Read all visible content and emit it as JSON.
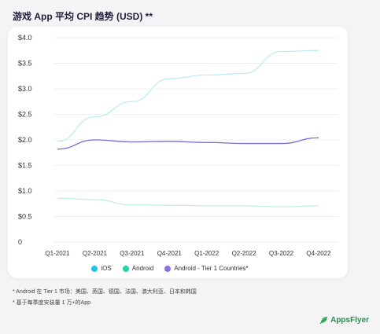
{
  "title": "游戏 App 平均 CPI 趋势 (USD) **",
  "chart_data": {
    "type": "line",
    "categories": [
      "Q1-2021",
      "Q2-2021",
      "Q3-2021",
      "Q4-2021",
      "Q1-2022",
      "Q2-2022",
      "Q3-2022",
      "Q4-2022"
    ],
    "ylim": [
      0,
      4.0
    ],
    "yticks": [
      {
        "value": 4.0,
        "label": "$4.0"
      },
      {
        "value": 3.5,
        "label": "$3.5"
      },
      {
        "value": 3.0,
        "label": "$3.0"
      },
      {
        "value": 2.5,
        "label": "$2.5"
      },
      {
        "value": 2.0,
        "label": "$2.0"
      },
      {
        "value": 1.5,
        "label": "$1.5"
      },
      {
        "value": 1.0,
        "label": "$1.0"
      },
      {
        "value": 0.5,
        "label": "$0.5"
      },
      {
        "value": 0,
        "label": "0"
      }
    ],
    "grid": "horizontal",
    "legend_position": "bottom",
    "series": [
      {
        "name": "iOS",
        "color": "#b7ecf5",
        "values": [
          1.97,
          2.45,
          2.75,
          3.2,
          3.27,
          3.3,
          3.73,
          3.75
        ]
      },
      {
        "name": "Android",
        "color": "#bdeee2",
        "values": [
          0.86,
          0.83,
          0.73,
          0.72,
          0.71,
          0.71,
          0.69,
          0.71
        ]
      },
      {
        "name": "Android - Tier 1 Countries*",
        "color": "#7b68e0",
        "values": [
          1.82,
          2.0,
          1.96,
          1.97,
          1.95,
          1.93,
          1.93,
          2.04
        ]
      }
    ]
  },
  "legend": [
    {
      "label": "iOS",
      "color": "#22c1e6"
    },
    {
      "label": "Android",
      "color": "#1ed4a8"
    },
    {
      "label": "Android - Tier 1 Countries*",
      "color": "#8f6fe6"
    }
  ],
  "footnotes": {
    "note1": "* Android 在 Tier 1 市场：美国、英国、德国、法国、澳大利亚、日本和韩国",
    "note2": "* 基于每季度安装量 1 万+的App"
  },
  "logo": {
    "text": "AppsFlyer",
    "icon": "appsflyer-logo-icon"
  }
}
